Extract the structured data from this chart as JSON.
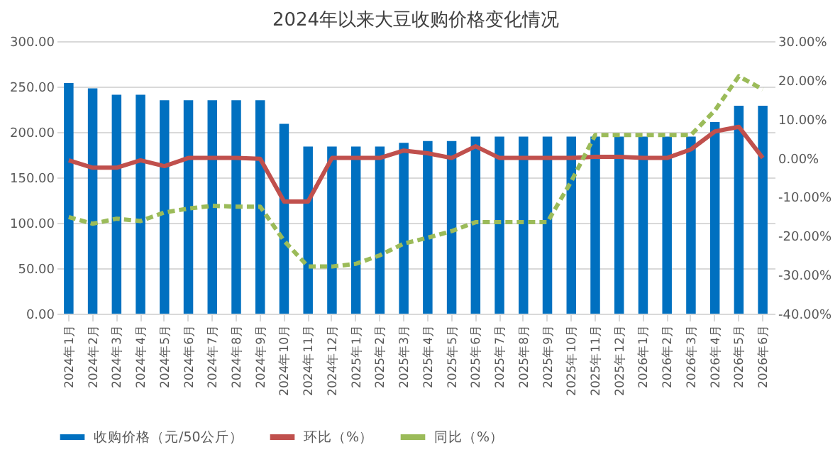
{
  "chart_data": {
    "type": "bar",
    "title": "2024年以来大豆收购价格变化情况",
    "categories": [
      "2024年1月",
      "2024年2月",
      "2024年3月",
      "2024年4月",
      "2024年5月",
      "2024年6月",
      "2024年7月",
      "2024年8月",
      "2024年9月",
      "2024年10月",
      "2024年11月",
      "2024年12月",
      "2025年1月",
      "2025年2月",
      "2025年3月",
      "2025年4月",
      "2025年5月",
      "2025年6月",
      "2025年7月",
      "2025年8月",
      "2025年9月",
      "2025年10月",
      "2025年11月",
      "2025年12月",
      "2026年1月",
      "2026年2月",
      "2026年3月",
      "2026年4月",
      "2026年5月",
      "2026年6月"
    ],
    "series": [
      {
        "name": "收购价格（元/50公斤）",
        "color": "#0070c0",
        "values": [
          254,
          248,
          241,
          241,
          235,
          235,
          235,
          235,
          235,
          209,
          184,
          184,
          184,
          184,
          188,
          190,
          190,
          195,
          195,
          195,
          195,
          195,
          195,
          195,
          195,
          195,
          195,
          211,
          229,
          229
        ]
      },
      {
        "name": "环比（%）",
        "type": "line",
        "axis": "y2",
        "color": "#c0504d",
        "line_style": "solid",
        "values": [
          -0.6,
          -2.5,
          -2.5,
          -0.6,
          -2.1,
          0,
          0,
          0,
          -0.2,
          -11.2,
          -11.2,
          0,
          0,
          0,
          1.9,
          1.2,
          0,
          3.0,
          0,
          0,
          0,
          0,
          0.3,
          0.3,
          0,
          0,
          2.2,
          6.8,
          8.0,
          0
        ]
      },
      {
        "name": "同比（%）",
        "type": "line",
        "axis": "y2",
        "color": "#9bbb59",
        "line_style": "dashed",
        "values": [
          -15.2,
          -16.9,
          -15.6,
          -16.2,
          -14.0,
          -13.0,
          -12.3,
          -12.5,
          -12.5,
          -21.3,
          -27.9,
          -27.9,
          -27.2,
          -25.0,
          -22.0,
          -20.5,
          -18.8,
          -16.5,
          -16.5,
          -16.5,
          -16.5,
          -6.0,
          5.9,
          5.9,
          5.9,
          5.9,
          5.9,
          12.2,
          21.0,
          17.6
        ]
      }
    ],
    "ylim": [
      0,
      300
    ],
    "yticks": [
      {
        "value": 0,
        "label": "0.00"
      },
      {
        "value": 50,
        "label": "50.00"
      },
      {
        "value": 100,
        "label": "100.00"
      },
      {
        "value": 150,
        "label": "150.00"
      },
      {
        "value": 200,
        "label": "200.00"
      },
      {
        "value": 250,
        "label": "250.00"
      },
      {
        "value": 300,
        "label": "300.00"
      }
    ],
    "y2lim": [
      -40,
      30
    ],
    "y2ticks": [
      {
        "value": -40,
        "label": "-40.00%"
      },
      {
        "value": -30,
        "label": "-30.00%"
      },
      {
        "value": -20,
        "label": "-20.00%"
      },
      {
        "value": -10,
        "label": "-10.00%"
      },
      {
        "value": 0,
        "label": "0.00%"
      },
      {
        "value": 10,
        "label": "10.00%"
      },
      {
        "value": 20,
        "label": "20.00%"
      },
      {
        "value": 30,
        "label": "30.00%"
      }
    ],
    "grid": "y",
    "legend": "bottom",
    "marker": "none"
  }
}
